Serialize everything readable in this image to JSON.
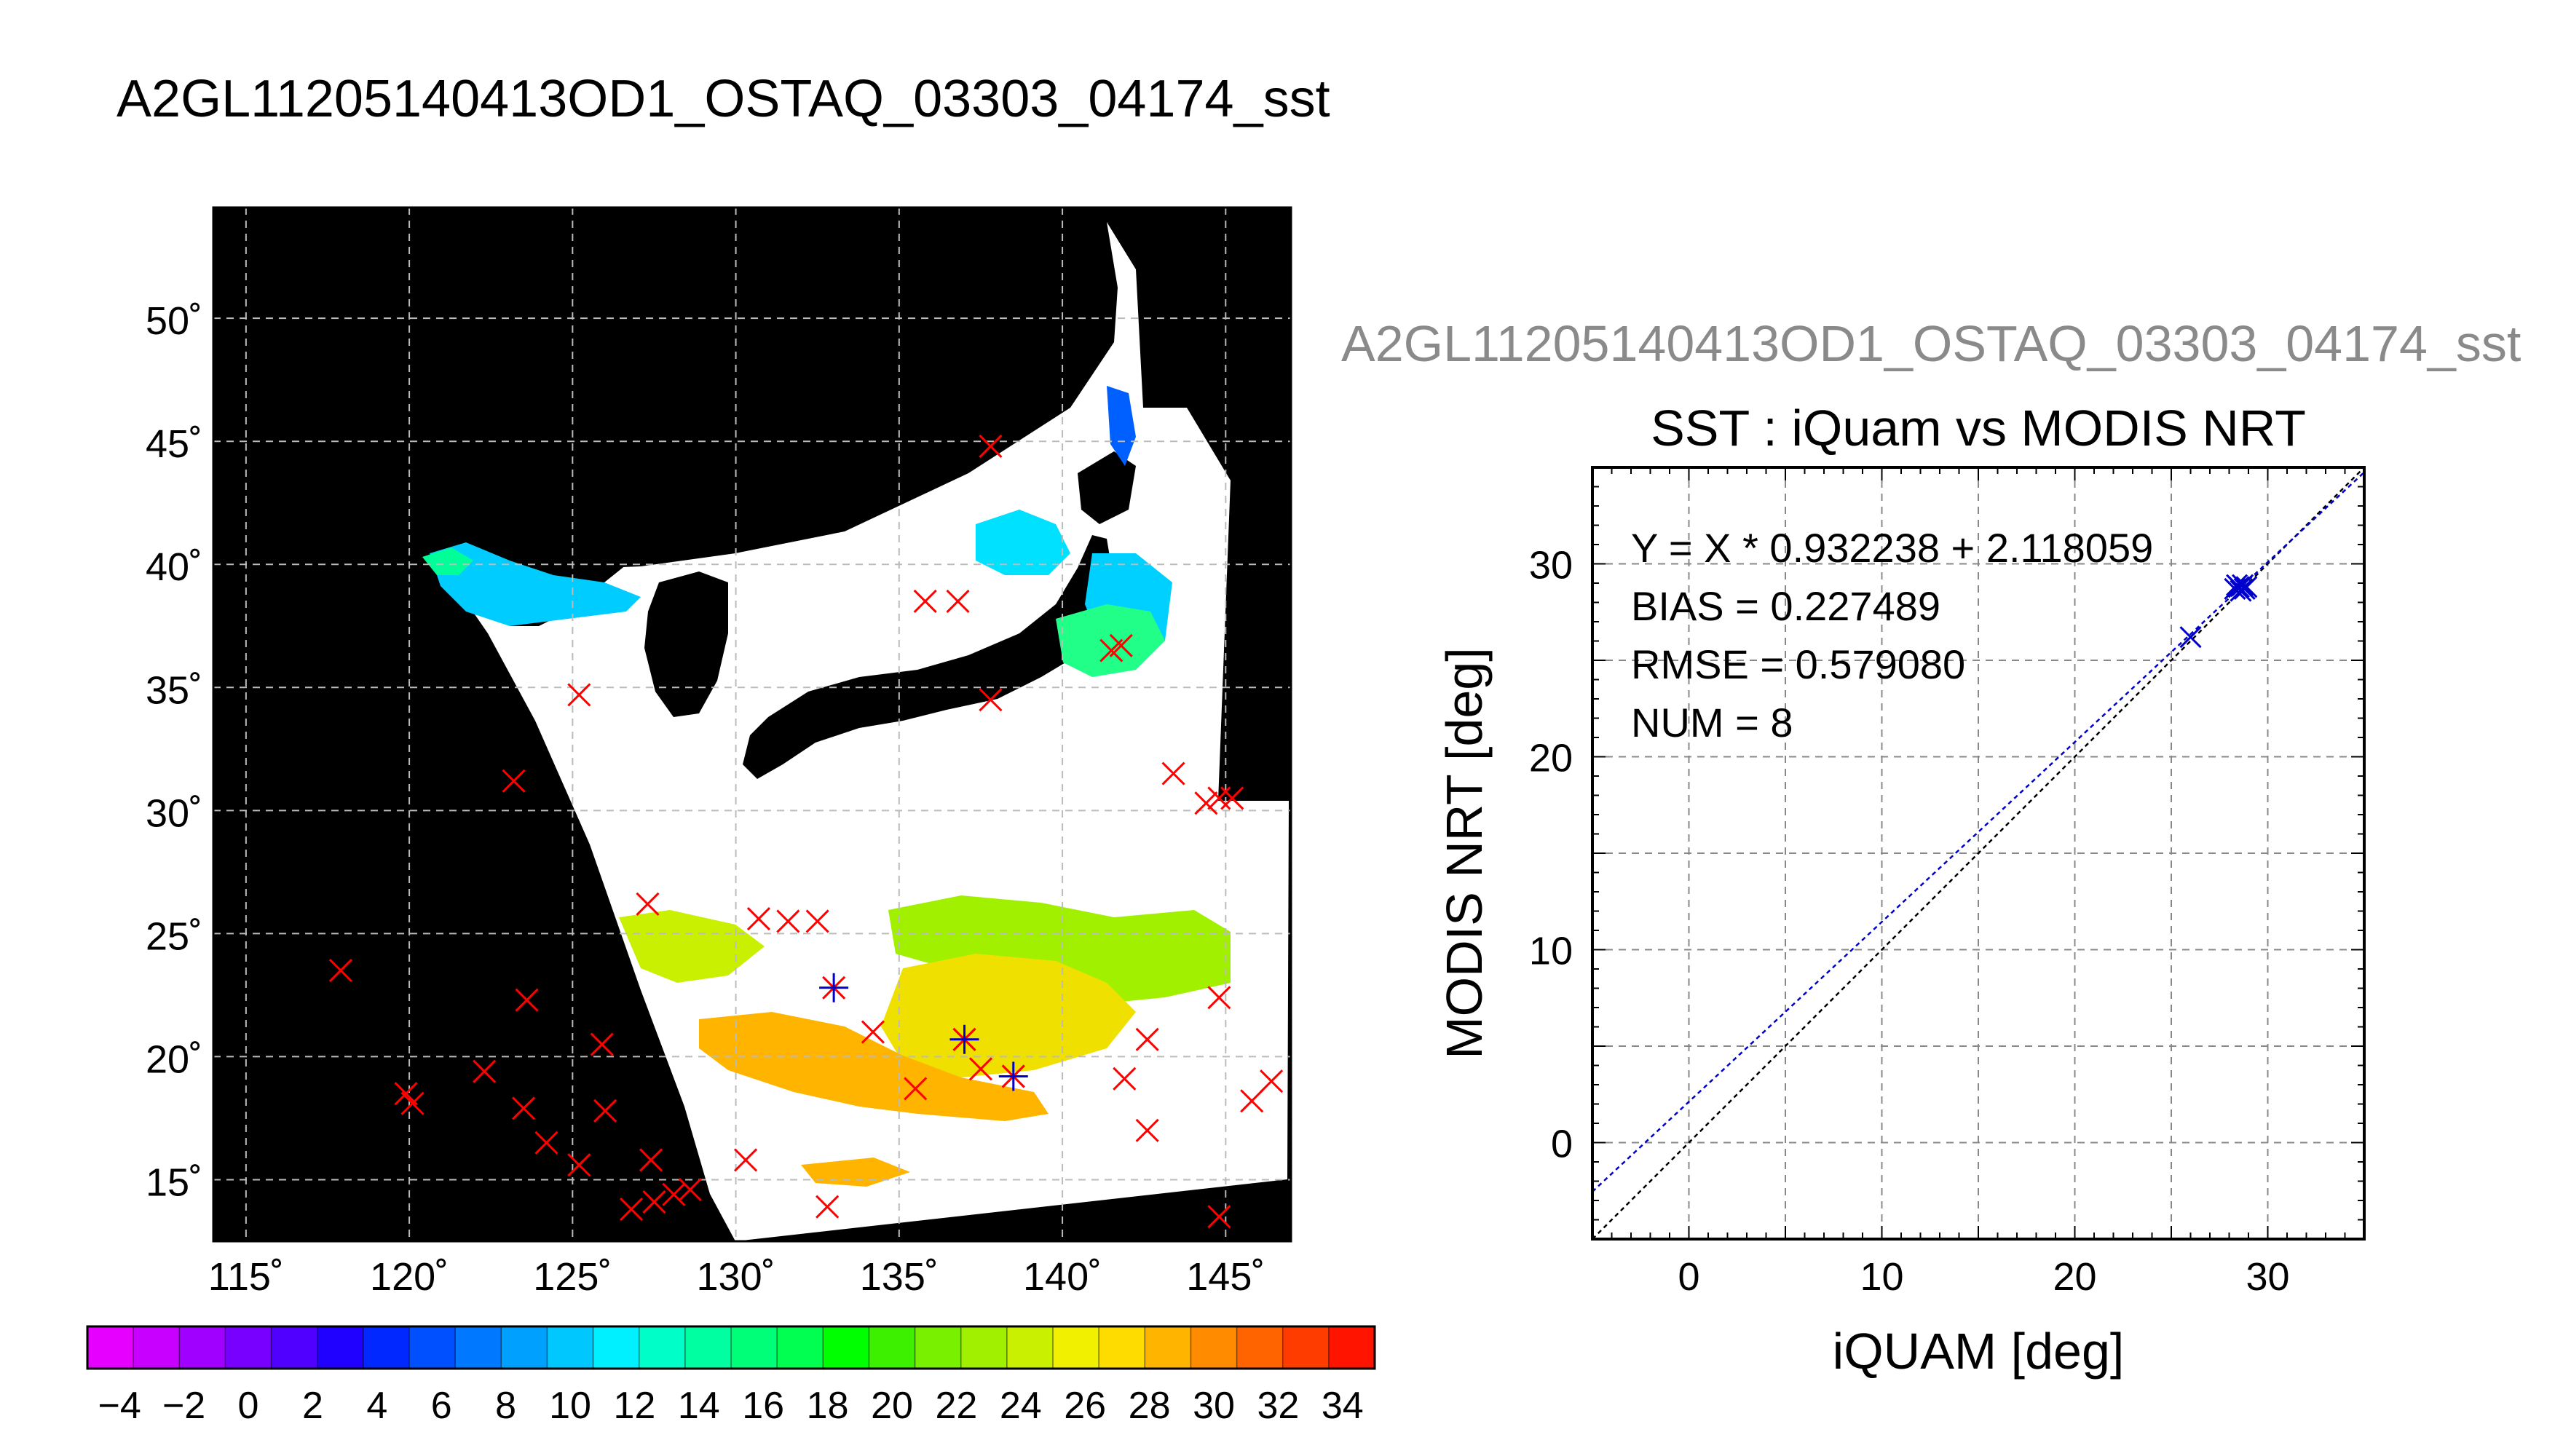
{
  "main_title": "A2GL11205140413OD1_OSTAQ_03303_04174_sst",
  "map": {
    "lat_labels": [
      "50˚",
      "45˚",
      "40˚",
      "35˚",
      "30˚",
      "25˚",
      "20˚",
      "15˚"
    ],
    "lon_labels": [
      "115˚",
      "120˚",
      "125˚",
      "130˚",
      "135˚",
      "140˚",
      "145˚"
    ],
    "lon_range": [
      114,
      147
    ],
    "lat_range": [
      12.5,
      54.5
    ]
  },
  "colorbar": {
    "labels": [
      "−4",
      "−2",
      "0",
      "2",
      "4",
      "6",
      "8",
      "10",
      "12",
      "14",
      "16",
      "18",
      "20",
      "22",
      "24",
      "26",
      "28",
      "30",
      "32",
      "34"
    ],
    "range": [
      -5,
      35
    ],
    "colors": [
      "#e600ff",
      "#c800ff",
      "#a000ff",
      "#7800ff",
      "#5000ff",
      "#2000ff",
      "#0028ff",
      "#0050ff",
      "#0078ff",
      "#00a0ff",
      "#00c8ff",
      "#00f0ff",
      "#00ffc8",
      "#00ffa0",
      "#00ff78",
      "#00ff50",
      "#00ff00",
      "#3cf000",
      "#78f000",
      "#a0f000",
      "#c8f000",
      "#f0f000",
      "#ffdc00",
      "#ffb400",
      "#ff8c00",
      "#ff6400",
      "#ff3c00",
      "#ff1400"
    ]
  },
  "scatter_title_grey": "A2GL11205140413OD1_OSTAQ_03303_04174_sst",
  "scatter": {
    "title": "SST : iQuam vs MODIS NRT",
    "xlabel": "iQUAM [deg]",
    "ylabel": "MODIS NRT [deg]",
    "stats": [
      "Y = X * 0.932238 + 2.118059",
      "BIAS = 0.227489",
      "RMSE = 0.579080",
      "NUM = 8"
    ]
  },
  "chart_data": [
    {
      "type": "scatter",
      "title": "SST : iQuam vs MODIS NRT",
      "xlabel": "iQUAM [deg]",
      "ylabel": "MODIS NRT [deg]",
      "xlim": [
        -5,
        35
      ],
      "ylim": [
        -5,
        35
      ],
      "xticks": [
        0,
        10,
        20,
        30
      ],
      "yticks": [
        0,
        10,
        20,
        30
      ],
      "grid": true,
      "points": [
        {
          "x": 26.0,
          "y": 26.2
        },
        {
          "x": 28.3,
          "y": 28.7
        },
        {
          "x": 28.5,
          "y": 28.8
        },
        {
          "x": 28.7,
          "y": 28.9
        },
        {
          "x": 28.9,
          "y": 28.8
        },
        {
          "x": 28.6,
          "y": 28.6
        },
        {
          "x": 28.4,
          "y": 28.9
        },
        {
          "x": 28.8,
          "y": 28.7
        }
      ],
      "fit": {
        "slope": 0.932238,
        "intercept": 2.118059,
        "color": "#0000cc"
      },
      "identity_color": "#000000",
      "point_color": "#0000cc"
    },
    {
      "type": "scatter",
      "xlabel": "",
      "ylabel": "",
      "xlim": [
        114,
        147
      ],
      "ylim": [
        12.5,
        54.5
      ],
      "marker_color": "#ff0000",
      "matched_color": "#0000cc",
      "red_markers": [
        [
          137.8,
          44.8
        ],
        [
          135.8,
          38.5
        ],
        [
          136.8,
          38.5
        ],
        [
          137.8,
          34.5
        ],
        [
          125.2,
          34.7
        ],
        [
          123.2,
          31.2
        ],
        [
          141.5,
          36.5
        ],
        [
          141.8,
          36.7
        ],
        [
          143.4,
          31.5
        ],
        [
          144.4,
          30.3
        ],
        [
          144.8,
          30.5
        ],
        [
          145.2,
          30.5
        ],
        [
          127.3,
          26.2
        ],
        [
          130.7,
          25.6
        ],
        [
          131.6,
          25.5
        ],
        [
          132.5,
          25.5
        ],
        [
          117.9,
          23.5
        ],
        [
          123.6,
          22.3
        ],
        [
          134.2,
          21.0
        ],
        [
          135.5,
          18.7
        ],
        [
          137.0,
          20.7
        ],
        [
          137.5,
          19.5
        ],
        [
          138.5,
          19.2
        ],
        [
          141.9,
          19.1
        ],
        [
          142.6,
          20.7
        ],
        [
          144.8,
          22.4
        ],
        [
          146.4,
          19.0
        ],
        [
          145.8,
          18.2
        ],
        [
          142.6,
          17.0
        ],
        [
          119.9,
          18.5
        ],
        [
          120.1,
          18.1
        ],
        [
          122.3,
          19.4
        ],
        [
          123.5,
          17.9
        ],
        [
          124.2,
          16.5
        ],
        [
          125.9,
          20.5
        ],
        [
          126.0,
          17.8
        ],
        [
          125.2,
          15.6
        ],
        [
          127.4,
          15.8
        ],
        [
          126.8,
          13.8
        ],
        [
          127.5,
          14.1
        ],
        [
          128.1,
          14.4
        ],
        [
          128.6,
          14.6
        ],
        [
          130.3,
          15.8
        ],
        [
          132.8,
          13.9
        ],
        [
          144.8,
          13.5
        ]
      ],
      "matched_points": [
        [
          133.0,
          22.8
        ],
        [
          137.0,
          20.7
        ],
        [
          138.5,
          19.2
        ]
      ]
    }
  ]
}
